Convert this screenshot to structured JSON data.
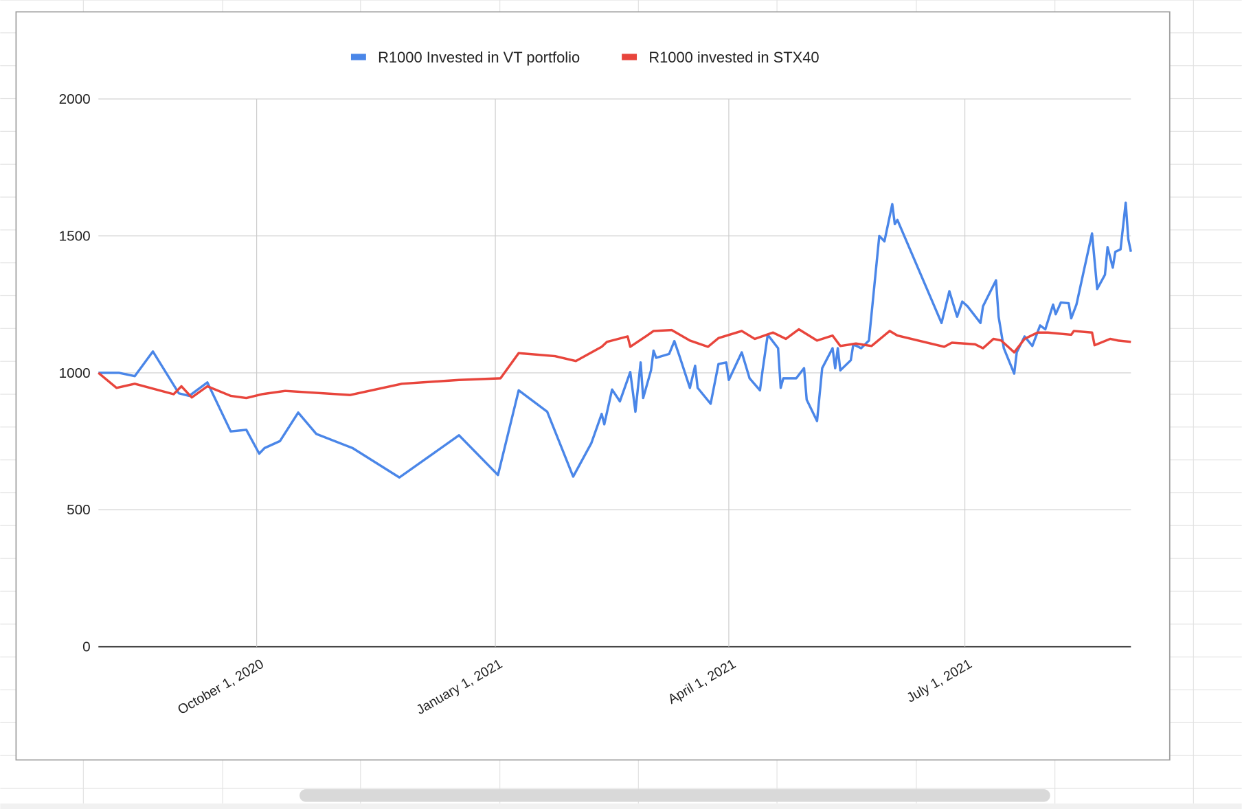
{
  "chart_data": {
    "type": "line",
    "legend": "top",
    "grid": true,
    "ylim": [
      0,
      2000
    ],
    "yticks": [
      0,
      500,
      1000,
      1500,
      2000
    ],
    "xlim": [
      "2020-08-01",
      "2021-09-03"
    ],
    "xticks": [
      {
        "value": "2020-10-01",
        "label": "October 1, 2020"
      },
      {
        "value": "2021-01-01",
        "label": "January 1, 2021"
      },
      {
        "value": "2021-04-01",
        "label": "April 1, 2021"
      },
      {
        "value": "2021-07-01",
        "label": "July 1, 2021"
      }
    ],
    "series": [
      {
        "name": "R1000 Invested in VT portfolio",
        "color": "#4a86e8",
        "x": [
          "2020-08-01",
          "2020-08-09",
          "2020-08-15",
          "2020-08-22",
          "2020-09-01",
          "2020-09-05",
          "2020-09-12",
          "2020-09-21",
          "2020-09-27",
          "2020-10-02",
          "2020-10-04",
          "2020-10-10",
          "2020-10-17",
          "2020-10-24",
          "2020-11-07",
          "2020-11-25",
          "2020-12-18",
          "2021-01-02",
          "2021-01-10",
          "2021-01-21",
          "2021-01-31",
          "2021-02-07",
          "2021-02-11",
          "2021-02-12",
          "2021-02-15",
          "2021-02-18",
          "2021-02-22",
          "2021-02-24",
          "2021-02-26",
          "2021-02-27",
          "2021-03-02",
          "2021-03-03",
          "2021-03-04",
          "2021-03-09",
          "2021-03-11",
          "2021-03-13",
          "2021-03-17",
          "2021-03-19",
          "2021-03-20",
          "2021-03-25",
          "2021-03-28",
          "2021-03-31",
          "2021-04-01",
          "2021-04-06",
          "2021-04-09",
          "2021-04-13",
          "2021-04-14",
          "2021-04-16",
          "2021-04-20",
          "2021-04-21",
          "2021-04-22",
          "2021-04-27",
          "2021-04-30",
          "2021-05-01",
          "2021-05-05",
          "2021-05-07",
          "2021-05-11",
          "2021-05-12",
          "2021-05-13",
          "2021-05-14",
          "2021-05-18",
          "2021-05-19",
          "2021-05-22",
          "2021-05-25",
          "2021-05-29",
          "2021-05-31",
          "2021-06-03",
          "2021-06-04",
          "2021-06-05",
          "2021-06-22",
          "2021-06-25",
          "2021-06-28",
          "2021-06-30",
          "2021-07-02",
          "2021-07-07",
          "2021-07-08",
          "2021-07-13",
          "2021-07-14",
          "2021-07-16",
          "2021-07-20",
          "2021-07-21",
          "2021-07-24",
          "2021-07-27",
          "2021-07-30",
          "2021-08-01",
          "2021-08-04",
          "2021-08-05",
          "2021-08-07",
          "2021-08-10",
          "2021-08-11",
          "2021-08-13",
          "2021-08-16",
          "2021-08-19",
          "2021-08-21",
          "2021-08-24",
          "2021-08-25",
          "2021-08-27",
          "2021-08-28",
          "2021-08-30",
          "2021-09-01",
          "2021-09-02",
          "2021-09-03"
        ],
        "values": [
          1000,
          1000,
          988,
          1078,
          925,
          916,
          965,
          786,
          792,
          705,
          725,
          751,
          855,
          777,
          725,
          618,
          772,
          627,
          936,
          858,
          621,
          743,
          850,
          812,
          939,
          896,
          1003,
          858,
          1038,
          908,
          1009,
          1081,
          1055,
          1069,
          1116,
          1061,
          945,
          1026,
          945,
          887,
          1032,
          1038,
          974,
          1075,
          980,
          936,
          1009,
          1139,
          1090,
          945,
          980,
          980,
          1017,
          902,
          824,
          1017,
          1090,
          1017,
          1090,
          1009,
          1046,
          1104,
          1090,
          1118,
          1500,
          1480,
          1616,
          1543,
          1558,
          1182,
          1298,
          1205,
          1260,
          1243,
          1182,
          1243,
          1338,
          1205,
          1090,
          997,
          1075,
          1133,
          1098,
          1173,
          1159,
          1249,
          1214,
          1257,
          1254,
          1199,
          1249,
          1379,
          1509,
          1306,
          1358,
          1459,
          1384,
          1442,
          1451,
          1621,
          1488,
          1442
        ]
      },
      {
        "name": "R1000 invested in STX40",
        "color": "#e8453c",
        "x": [
          "2020-08-01",
          "2020-08-08",
          "2020-08-15",
          "2020-08-30",
          "2020-09-02",
          "2020-09-06",
          "2020-09-12",
          "2020-09-21",
          "2020-09-27",
          "2020-10-03",
          "2020-10-12",
          "2020-11-06",
          "2020-11-26",
          "2020-12-18",
          "2021-01-03",
          "2021-01-10",
          "2021-01-24",
          "2021-02-01",
          "2021-02-11",
          "2021-02-13",
          "2021-02-21",
          "2021-02-22",
          "2021-02-28",
          "2021-03-03",
          "2021-03-10",
          "2021-03-17",
          "2021-03-24",
          "2021-03-28",
          "2021-04-06",
          "2021-04-11",
          "2021-04-18",
          "2021-04-23",
          "2021-04-28",
          "2021-05-05",
          "2021-05-11",
          "2021-05-14",
          "2021-05-20",
          "2021-05-26",
          "2021-06-02",
          "2021-06-05",
          "2021-06-23",
          "2021-06-26",
          "2021-07-05",
          "2021-07-08",
          "2021-07-12",
          "2021-07-15",
          "2021-07-20",
          "2021-07-24",
          "2021-07-29",
          "2021-08-02",
          "2021-08-11",
          "2021-08-12",
          "2021-08-19",
          "2021-08-20",
          "2021-08-26",
          "2021-08-29",
          "2021-09-03"
        ],
        "values": [
          1000,
          945,
          960,
          922,
          951,
          910,
          951,
          916,
          908,
          922,
          934,
          919,
          960,
          974,
          980,
          1072,
          1061,
          1043,
          1095,
          1113,
          1133,
          1095,
          1133,
          1153,
          1156,
          1118,
          1095,
          1127,
          1153,
          1124,
          1147,
          1124,
          1159,
          1118,
          1136,
          1098,
          1107,
          1098,
          1153,
          1136,
          1095,
          1110,
          1104,
          1090,
          1124,
          1118,
          1075,
          1124,
          1147,
          1147,
          1139,
          1153,
          1147,
          1101,
          1124,
          1118,
          1113
        ]
      }
    ]
  }
}
